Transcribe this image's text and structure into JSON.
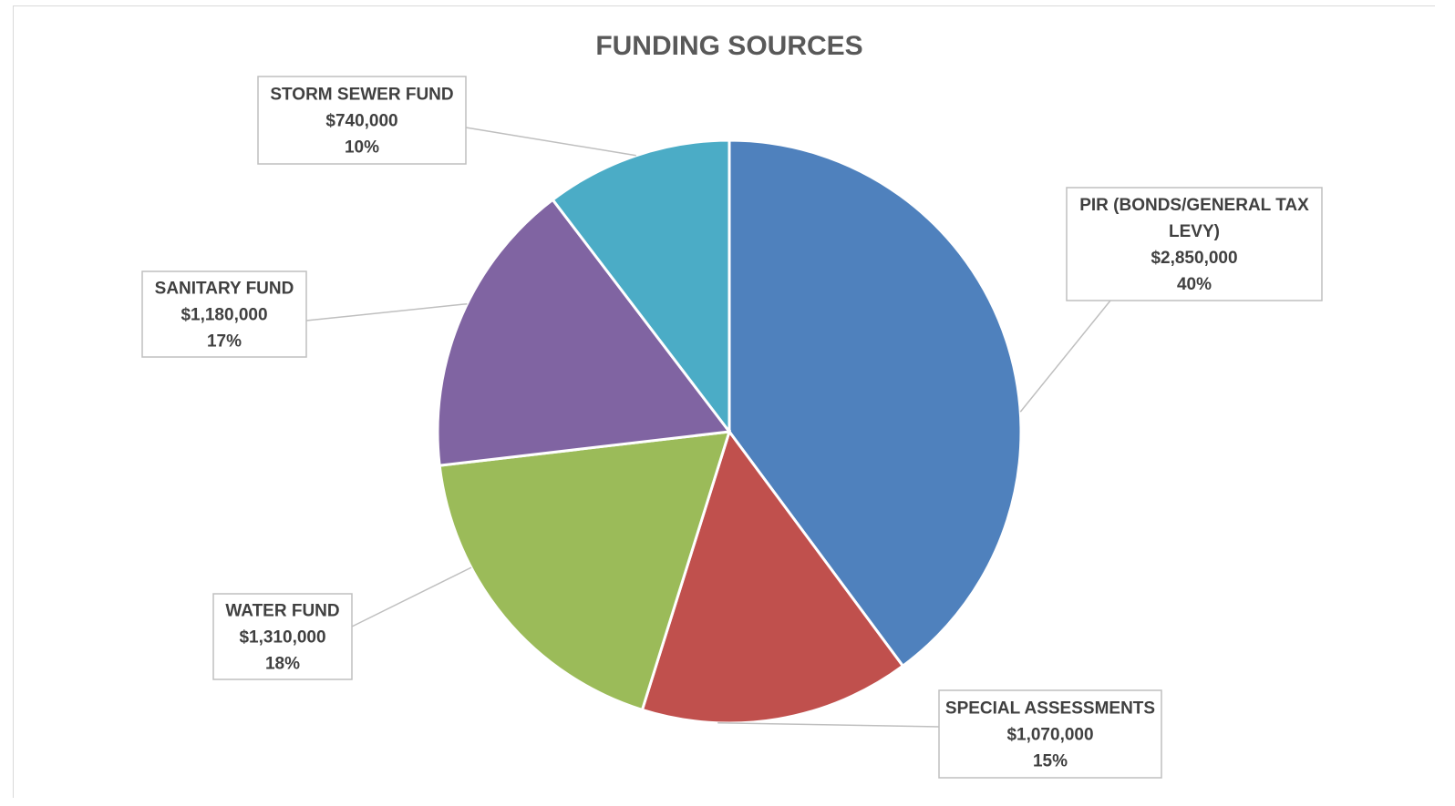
{
  "chart_data": {
    "type": "pie",
    "title": "FUNDING SOURCES",
    "slices": [
      {
        "name": "PIR (BONDS/GENERAL TAX LEVY)",
        "name_lines": [
          "PIR (BONDS/GENERAL TAX",
          "LEVY)"
        ],
        "value": 2850000,
        "value_label": "$2,850,000",
        "percent_label": "40%",
        "color": "#4F81BD"
      },
      {
        "name": "SPECIAL ASSESSMENTS",
        "name_lines": [
          "SPECIAL ASSESSMENTS"
        ],
        "value": 1070000,
        "value_label": "$1,070,000",
        "percent_label": "15%",
        "color": "#C0504D"
      },
      {
        "name": "WATER FUND",
        "name_lines": [
          "WATER FUND"
        ],
        "value": 1310000,
        "value_label": "$1,310,000",
        "percent_label": "18%",
        "color": "#9BBB59"
      },
      {
        "name": "SANITARY FUND",
        "name_lines": [
          "SANITARY FUND"
        ],
        "value": 1180000,
        "value_label": "$1,180,000",
        "percent_label": "17%",
        "color": "#8064A2"
      },
      {
        "name": "STORM SEWER FUND",
        "name_lines": [
          "STORM SEWER FUND"
        ],
        "value": 740000,
        "value_label": "$740,000",
        "percent_label": "10%",
        "color": "#4BACC6"
      }
    ],
    "start_angle": "12 o'clock",
    "direction": "clockwise",
    "legend": "none",
    "data_labels": "callout"
  }
}
